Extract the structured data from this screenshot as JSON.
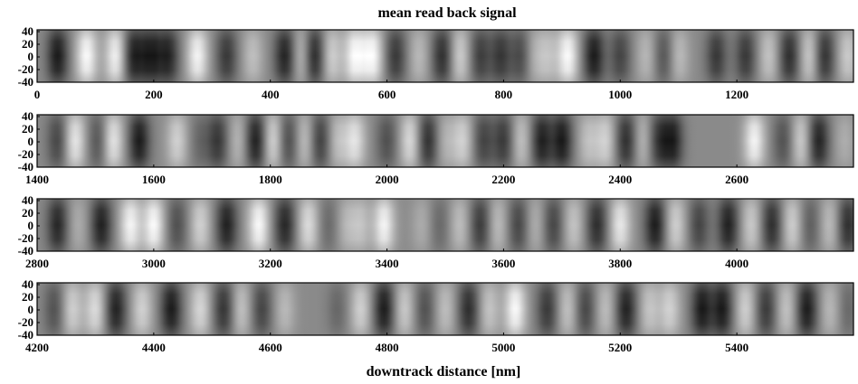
{
  "chart_data": {
    "type": "heatmap",
    "title": "mean read back signal",
    "xlabel": "downtrack distance [nm]",
    "ylabel": "",
    "ylim": [
      -40,
      40
    ],
    "ytick_labels": [
      "40",
      "20",
      "0",
      "-20",
      "-40"
    ],
    "colormap": "grayscale",
    "colors": {
      "positive": "#ffffff",
      "neutral": "#8a8a8a",
      "negative": "#000000",
      "frame": "#000000"
    },
    "panels": [
      {
        "name": "row-1",
        "xrange": [
          0,
          1400
        ],
        "xtick_labels": [
          "0",
          "200",
          "400",
          "600",
          "800",
          "1000",
          "1200"
        ],
        "signal": [
          {
            "x": 35,
            "v": -0.95
          },
          {
            "x": 85,
            "v": 0.95
          },
          {
            "x": 135,
            "v": 0.9
          },
          {
            "x": 165,
            "v": -0.9
          },
          {
            "x": 195,
            "v": -0.95
          },
          {
            "x": 225,
            "v": -0.85
          },
          {
            "x": 275,
            "v": 0.9
          },
          {
            "x": 325,
            "v": -0.7
          },
          {
            "x": 370,
            "v": 0.45
          },
          {
            "x": 425,
            "v": -0.9
          },
          {
            "x": 455,
            "v": 0.55
          },
          {
            "x": 475,
            "v": -0.95
          },
          {
            "x": 505,
            "v": 0.6
          },
          {
            "x": 545,
            "v": 0.95
          },
          {
            "x": 575,
            "v": 0.95
          },
          {
            "x": 615,
            "v": -0.7
          },
          {
            "x": 655,
            "v": 0.4
          },
          {
            "x": 695,
            "v": -0.8
          },
          {
            "x": 725,
            "v": 0.6
          },
          {
            "x": 760,
            "v": -0.65
          },
          {
            "x": 795,
            "v": -0.7
          },
          {
            "x": 830,
            "v": -0.6
          },
          {
            "x": 850,
            "v": 0.35
          },
          {
            "x": 875,
            "v": 0.45
          },
          {
            "x": 910,
            "v": 0.95
          },
          {
            "x": 955,
            "v": -0.95
          },
          {
            "x": 1000,
            "v": -0.6
          },
          {
            "x": 1045,
            "v": 0.4
          },
          {
            "x": 1075,
            "v": -0.5
          },
          {
            "x": 1100,
            "v": 0.45
          },
          {
            "x": 1165,
            "v": -0.7
          },
          {
            "x": 1215,
            "v": -0.7
          },
          {
            "x": 1255,
            "v": 0.5
          },
          {
            "x": 1290,
            "v": -0.8
          },
          {
            "x": 1325,
            "v": 0.6
          },
          {
            "x": 1350,
            "v": -0.8
          },
          {
            "x": 1390,
            "v": 0.55
          }
        ]
      },
      {
        "name": "row-2",
        "xrange": [
          1400,
          2800
        ],
        "xtick_labels": [
          "1400",
          "1600",
          "1800",
          "2000",
          "2200",
          "2400",
          "2600"
        ],
        "signal": [
          {
            "x": 1435,
            "v": -0.6
          },
          {
            "x": 1465,
            "v": 0.8
          },
          {
            "x": 1505,
            "v": -0.5
          },
          {
            "x": 1530,
            "v": 0.8
          },
          {
            "x": 1575,
            "v": -0.95
          },
          {
            "x": 1640,
            "v": 0.6
          },
          {
            "x": 1680,
            "v": -0.3
          },
          {
            "x": 1710,
            "v": -0.7
          },
          {
            "x": 1745,
            "v": 0.4
          },
          {
            "x": 1775,
            "v": -0.95
          },
          {
            "x": 1805,
            "v": 0.7
          },
          {
            "x": 1830,
            "v": -0.6
          },
          {
            "x": 1860,
            "v": 0.5
          },
          {
            "x": 1885,
            "v": -0.7
          },
          {
            "x": 1915,
            "v": 0.45
          },
          {
            "x": 1945,
            "v": 0.75
          },
          {
            "x": 2000,
            "v": -0.5
          },
          {
            "x": 2040,
            "v": 0.7
          },
          {
            "x": 2070,
            "v": -0.8
          },
          {
            "x": 2100,
            "v": 0.35
          },
          {
            "x": 2130,
            "v": 0.6
          },
          {
            "x": 2165,
            "v": -0.6
          },
          {
            "x": 2200,
            "v": -0.7
          },
          {
            "x": 2230,
            "v": 0.5
          },
          {
            "x": 2265,
            "v": -0.9
          },
          {
            "x": 2300,
            "v": -0.95
          },
          {
            "x": 2345,
            "v": 0.45
          },
          {
            "x": 2375,
            "v": 0.6
          },
          {
            "x": 2410,
            "v": -0.8
          },
          {
            "x": 2440,
            "v": 0.45
          },
          {
            "x": 2465,
            "v": -0.7
          },
          {
            "x": 2490,
            "v": -0.9
          },
          {
            "x": 2630,
            "v": 0.9
          },
          {
            "x": 2680,
            "v": -0.5
          },
          {
            "x": 2710,
            "v": 0.6
          },
          {
            "x": 2740,
            "v": -0.9
          },
          {
            "x": 2785,
            "v": 0.3
          }
        ]
      },
      {
        "name": "row-3",
        "xrange": [
          2800,
          4200
        ],
        "xtick_labels": [
          "2800",
          "3000",
          "3200",
          "3400",
          "3600",
          "3800",
          "4000"
        ],
        "signal": [
          {
            "x": 2835,
            "v": -0.85
          },
          {
            "x": 2870,
            "v": 0.3
          },
          {
            "x": 2910,
            "v": -0.9
          },
          {
            "x": 2960,
            "v": 0.9
          },
          {
            "x": 3000,
            "v": 0.95
          },
          {
            "x": 3040,
            "v": -0.5
          },
          {
            "x": 3080,
            "v": 0.6
          },
          {
            "x": 3125,
            "v": -0.9
          },
          {
            "x": 3180,
            "v": 0.95
          },
          {
            "x": 3225,
            "v": -0.85
          },
          {
            "x": 3265,
            "v": 0.7
          },
          {
            "x": 3300,
            "v": -0.3
          },
          {
            "x": 3330,
            "v": 0.35
          },
          {
            "x": 3355,
            "v": 0.45
          },
          {
            "x": 3395,
            "v": 0.9
          },
          {
            "x": 3460,
            "v": 0.3
          },
          {
            "x": 3490,
            "v": -0.3
          },
          {
            "x": 3525,
            "v": 0.45
          },
          {
            "x": 3560,
            "v": -0.7
          },
          {
            "x": 3590,
            "v": 0.45
          },
          {
            "x": 3625,
            "v": -0.6
          },
          {
            "x": 3655,
            "v": 0.35
          },
          {
            "x": 3685,
            "v": -0.6
          },
          {
            "x": 3720,
            "v": 0.5
          },
          {
            "x": 3760,
            "v": -0.8
          },
          {
            "x": 3800,
            "v": 0.8
          },
          {
            "x": 3860,
            "v": -0.95
          },
          {
            "x": 3895,
            "v": 0.6
          },
          {
            "x": 3935,
            "v": -0.6
          },
          {
            "x": 3985,
            "v": -0.9
          },
          {
            "x": 4025,
            "v": 0.55
          },
          {
            "x": 4060,
            "v": -0.8
          },
          {
            "x": 4095,
            "v": 0.6
          },
          {
            "x": 4125,
            "v": -0.4
          },
          {
            "x": 4160,
            "v": 0.45
          },
          {
            "x": 4190,
            "v": -0.8
          }
        ]
      },
      {
        "name": "row-4",
        "xrange": [
          4200,
          5600
        ],
        "xtick_labels": [
          "4200",
          "4400",
          "4600",
          "4800",
          "5000",
          "5200",
          "5400"
        ],
        "signal": [
          {
            "x": 4230,
            "v": -0.5
          },
          {
            "x": 4260,
            "v": 0.6
          },
          {
            "x": 4300,
            "v": 0.7
          },
          {
            "x": 4335,
            "v": -0.9
          },
          {
            "x": 4380,
            "v": 0.6
          },
          {
            "x": 4430,
            "v": -0.95
          },
          {
            "x": 4480,
            "v": 0.65
          },
          {
            "x": 4520,
            "v": -0.75
          },
          {
            "x": 4550,
            "v": 0.5
          },
          {
            "x": 4585,
            "v": -0.6
          },
          {
            "x": 4625,
            "v": 0.4
          },
          {
            "x": 4715,
            "v": -0.3
          },
          {
            "x": 4755,
            "v": 0.6
          },
          {
            "x": 4795,
            "v": -0.95
          },
          {
            "x": 4830,
            "v": 0.55
          },
          {
            "x": 4865,
            "v": -0.5
          },
          {
            "x": 4900,
            "v": 0.45
          },
          {
            "x": 4940,
            "v": -0.8
          },
          {
            "x": 4975,
            "v": 0.5
          },
          {
            "x": 5020,
            "v": 0.95
          },
          {
            "x": 5075,
            "v": -0.7
          },
          {
            "x": 5110,
            "v": 0.5
          },
          {
            "x": 5140,
            "v": -0.6
          },
          {
            "x": 5175,
            "v": 0.45
          },
          {
            "x": 5210,
            "v": -0.9
          },
          {
            "x": 5250,
            "v": 0.5
          },
          {
            "x": 5285,
            "v": 0.6
          },
          {
            "x": 5340,
            "v": -0.95
          },
          {
            "x": 5375,
            "v": -0.95
          },
          {
            "x": 5415,
            "v": 0.6
          },
          {
            "x": 5450,
            "v": -0.7
          },
          {
            "x": 5485,
            "v": 0.5
          },
          {
            "x": 5520,
            "v": -0.95
          },
          {
            "x": 5560,
            "v": 0.4
          },
          {
            "x": 5590,
            "v": -0.3
          }
        ]
      }
    ]
  }
}
